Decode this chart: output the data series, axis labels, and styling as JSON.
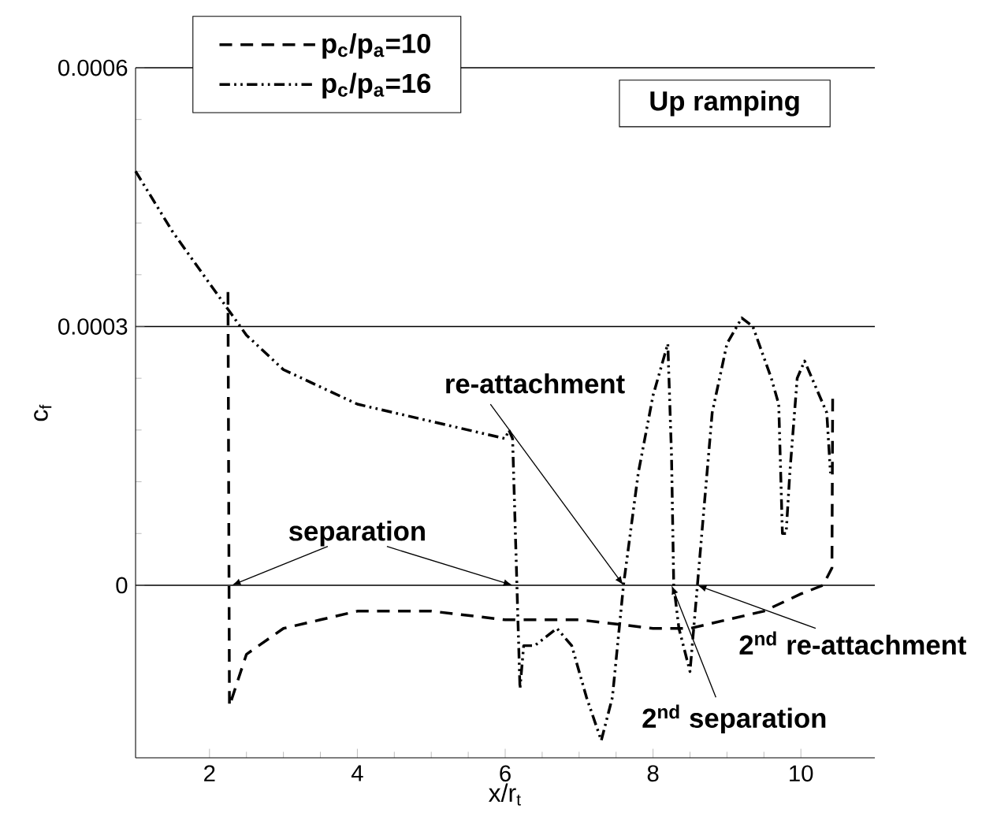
{
  "chart_data": {
    "type": "line",
    "title": "Up ramping",
    "xlabel": "x/r$_{t}$",
    "ylabel": "c$_{f}$",
    "xlim": [
      1,
      11
    ],
    "xticks": [
      2,
      4,
      6,
      8,
      10
    ],
    "ylim": [
      -0.0002,
      0.0006
    ],
    "yticks": [
      0,
      0.0003,
      0.0006
    ],
    "grid": "y",
    "legend": "top left",
    "series": [
      {
        "name": "p$_{c}$/p$_{a}$=10",
        "color": "#000000",
        "line_style": "dashed",
        "x": [
          2.25,
          2.27,
          2.5,
          3,
          3.5,
          4,
          4.5,
          5,
          6,
          7,
          8,
          8.5,
          9,
          9.5,
          10,
          10.3,
          10.42,
          10.43
        ],
        "values": [
          0.00034,
          -0.00014,
          -8e-05,
          -5e-05,
          -4e-05,
          -3e-05,
          -3e-05,
          -3e-05,
          -4e-05,
          -4e-05,
          -5e-05,
          -5e-05,
          -4e-05,
          -3e-05,
          -1e-05,
          0,
          2e-05,
          0.00022
        ]
      },
      {
        "name": "p$_{c}$/p$_{a}$=16",
        "color": "#000000",
        "line_style": "dashdotdotted",
        "x": [
          1,
          1.5,
          2,
          2.5,
          3,
          3.5,
          4,
          4.5,
          5,
          5.5,
          6,
          6.05,
          6.1,
          6.2,
          6.25,
          6.4,
          6.7,
          6.9,
          7.1,
          7.3,
          7.45,
          7.6,
          7.8,
          8.0,
          8.2,
          8.25,
          8.28,
          8.35,
          8.5,
          8.6,
          8.8,
          9.0,
          9.2,
          9.35,
          9.6,
          9.7,
          9.75,
          9.8,
          9.85,
          9.95,
          10.05,
          10.2,
          10.35,
          10.4
        ],
        "values": [
          0.00048,
          0.00041,
          0.00035,
          0.00029,
          0.00025,
          0.00023,
          0.00021,
          0.0002,
          0.00019,
          0.00018,
          0.00017,
          0.00018,
          0.00017,
          -0.00012,
          -7e-05,
          -7e-05,
          -5e-05,
          -7e-05,
          -0.00013,
          -0.00018,
          -0.00013,
          0,
          0.00013,
          0.00022,
          0.00028,
          0.00015,
          0,
          -5e-05,
          -0.0001,
          0,
          0.0002,
          0.00028,
          0.00031,
          0.0003,
          0.00024,
          0.00021,
          6e-05,
          6e-05,
          0.00013,
          0.00024,
          0.00026,
          0.00023,
          0.0002,
          0.00013
        ]
      }
    ],
    "annotations": [
      {
        "text": "separation",
        "x": 2.3,
        "y": 0
      },
      {
        "text": "re-attachment",
        "x": 7.6,
        "y": 0
      },
      {
        "text": "2$^{nd}$ separation",
        "x": 8.25,
        "y": 0
      },
      {
        "text": "2$^{nd}$ re-attachment",
        "x": 8.6,
        "y": 0
      }
    ]
  }
}
